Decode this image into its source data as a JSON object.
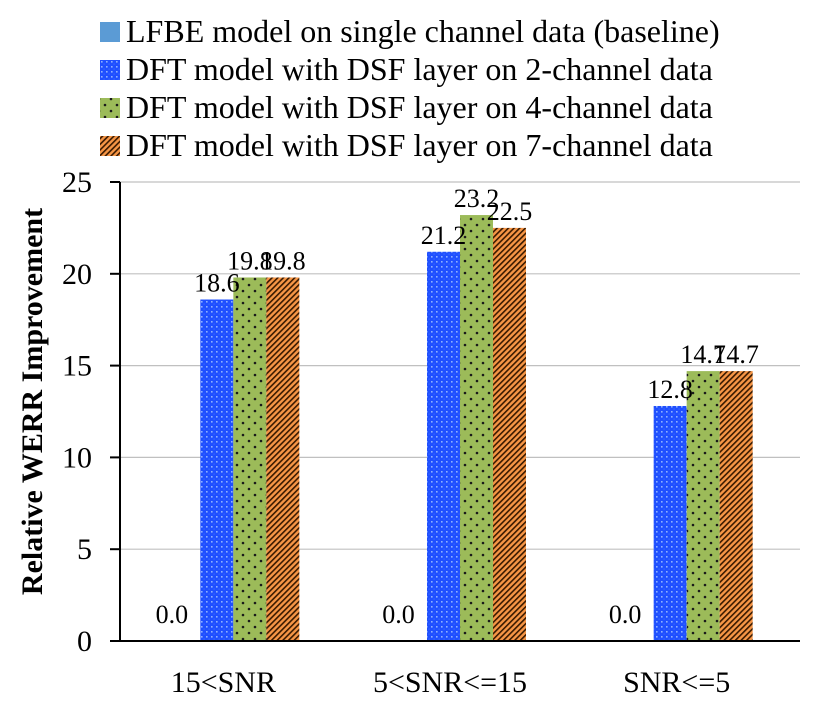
{
  "chart_data": {
    "type": "bar",
    "title": "",
    "xlabel": "",
    "ylabel": "Relative WERR Improvement",
    "ylim": [
      0,
      25
    ],
    "yticks": [
      0,
      5,
      10,
      15,
      20,
      25
    ],
    "grid": true,
    "legend_position": "top-left",
    "categories": [
      "15<SNR",
      "5<SNR<=15",
      "SNR<=5"
    ],
    "series": [
      {
        "name": "LFBE model on single channel data (baseline)",
        "values": [
          0.0,
          0.0,
          0.0
        ],
        "labels": [
          "0.0",
          "0.0",
          "0.0"
        ],
        "color": "#5b9bd5",
        "pattern": "solid"
      },
      {
        "name": "DFT model with DSF layer on 2-channel data",
        "values": [
          18.6,
          21.2,
          12.8
        ],
        "labels": [
          "18.6",
          "21.2",
          "12.8"
        ],
        "color": "#1f4fff",
        "pattern": "dots-dense"
      },
      {
        "name": "DFT model with DSF layer on 4-channel data",
        "values": [
          19.8,
          23.2,
          14.7
        ],
        "labels": [
          "19.8",
          "23.2",
          "14.7"
        ],
        "color": "#9cbb59",
        "pattern": "dots-sparse"
      },
      {
        "name": "DFT model with DSF layer on 7-channel data",
        "values": [
          19.8,
          22.5,
          14.7
        ],
        "labels": [
          "19.8",
          "22.5",
          "14.7"
        ],
        "color": "#f79646",
        "pattern": "hatch-dense"
      }
    ]
  }
}
